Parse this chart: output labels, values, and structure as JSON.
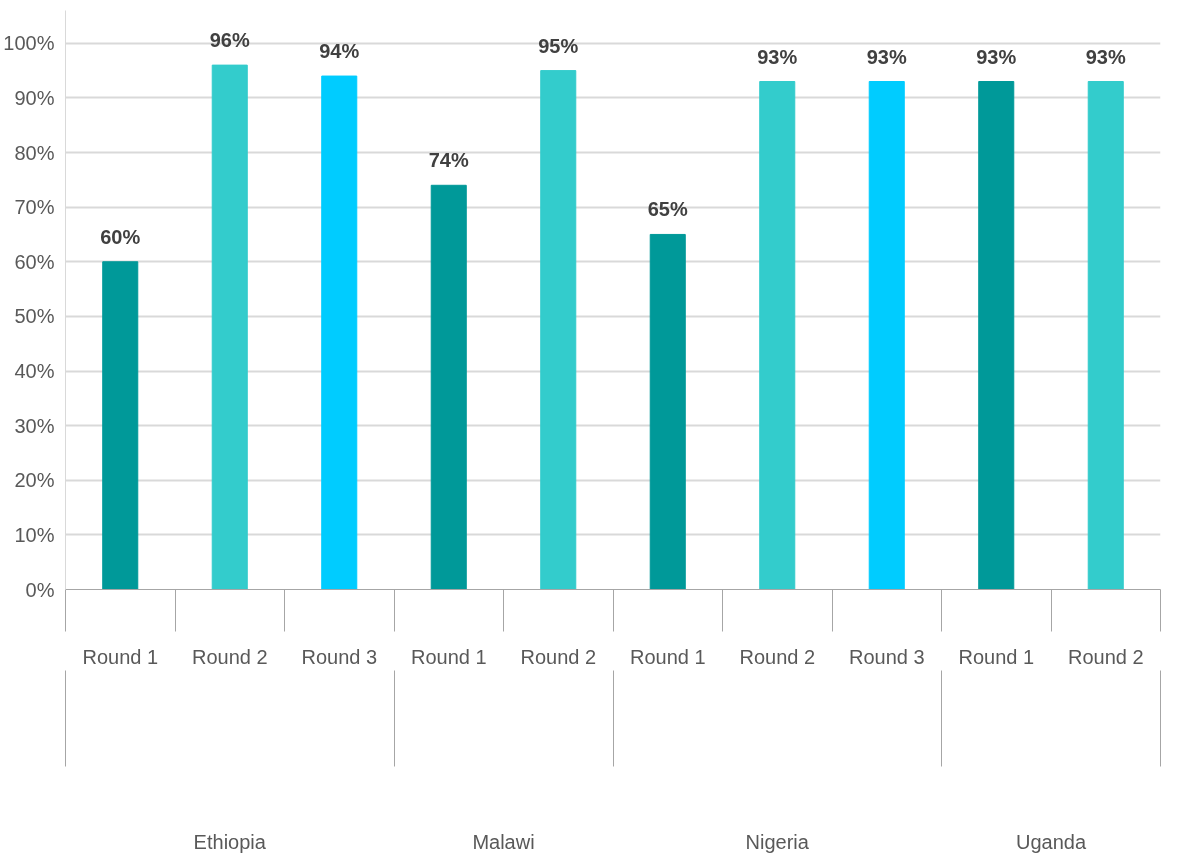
{
  "chart_data": {
    "type": "bar",
    "categories": [
      "Round 1",
      "Round 2",
      "Round 3",
      "Round 1",
      "Round 2",
      "Round 1",
      "Round 2",
      "Round 3",
      "Round 1",
      "Round 2"
    ],
    "annotations": [
      "Ethiopia",
      "Malawi",
      "Nigeria",
      "Uganda"
    ],
    "values": [
      60,
      96,
      94,
      74,
      95,
      65,
      93,
      93,
      93,
      93
    ],
    "value_labels": [
      "60%",
      "96%",
      "94%",
      "74%",
      "95%",
      "65%",
      "93%",
      "93%",
      "93%",
      "93%"
    ],
    "colors": [
      "#009999",
      "#33cccc",
      "#00ccff",
      "#009999",
      "#33cccc",
      "#009999",
      "#33cccc",
      "#00ccff",
      "#009999",
      "#33cccc"
    ],
    "ylim": [
      0,
      106
    ],
    "yticks": [
      {
        "value": 0,
        "label": "0%"
      },
      {
        "value": 10,
        "label": "10%"
      },
      {
        "value": 20,
        "label": "20%"
      },
      {
        "value": 30,
        "label": "30%"
      },
      {
        "value": 40,
        "label": "40%"
      },
      {
        "value": 50,
        "label": "50%"
      },
      {
        "value": 60,
        "label": "60%"
      },
      {
        "value": 70,
        "label": "70%"
      },
      {
        "value": 80,
        "label": "80%"
      },
      {
        "value": 90,
        "label": "90%"
      },
      {
        "value": 100,
        "label": "100%"
      }
    ],
    "grid": "y"
  }
}
